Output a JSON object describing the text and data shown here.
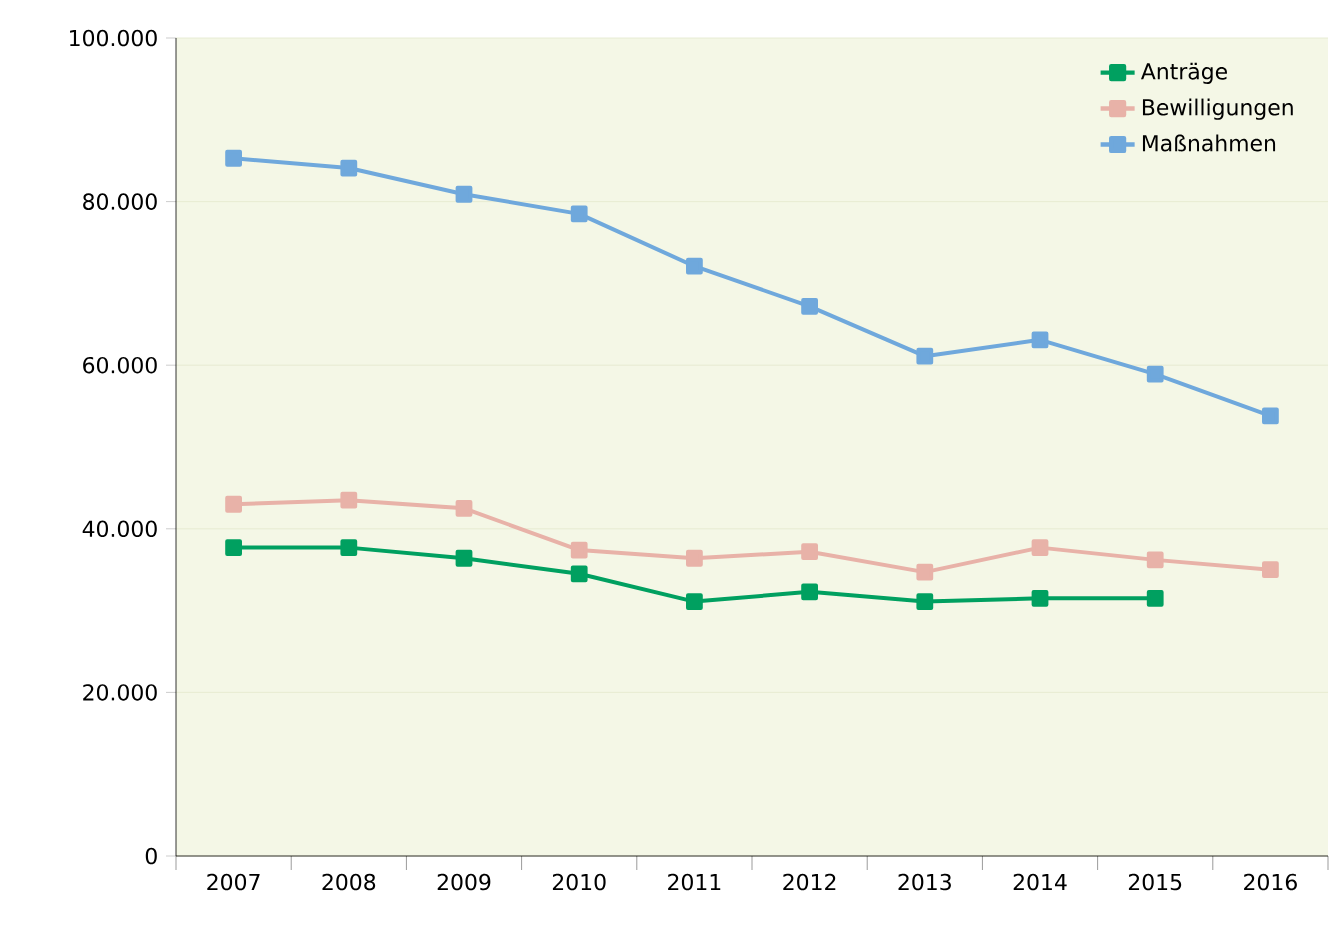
{
  "chart_data": {
    "type": "line",
    "categories": [
      "2007",
      "2008",
      "2009",
      "2010",
      "2011",
      "2012",
      "2013",
      "2014",
      "2015",
      "2016"
    ],
    "series": [
      {
        "name": "Anträge",
        "color": "#00a060",
        "values": [
          37700,
          37700,
          36400,
          34500,
          31100,
          32300,
          31100,
          31500,
          31500,
          null
        ]
      },
      {
        "name": "Bewilligungen",
        "color": "#e8b2a8",
        "values": [
          43000,
          43500,
          42500,
          37400,
          36400,
          37200,
          34700,
          37700,
          36200,
          35000
        ]
      },
      {
        "name": "Maßnahmen",
        "color": "#6fa8dc",
        "values": [
          85300,
          84100,
          80900,
          78500,
          72100,
          67200,
          61100,
          63100,
          58900,
          53800
        ]
      }
    ],
    "ylim": [
      0,
      100000
    ],
    "yticks": [
      {
        "value": 0,
        "label": "0"
      },
      {
        "value": 20000,
        "label": "20.000"
      },
      {
        "value": 40000,
        "label": "40.000"
      },
      {
        "value": 60000,
        "label": "60.000"
      },
      {
        "value": 80000,
        "label": "80.000"
      },
      {
        "value": 100000,
        "label": "100.000"
      }
    ],
    "grid": "y",
    "legend": "top right",
    "marker": "square",
    "line_style": "solid"
  }
}
